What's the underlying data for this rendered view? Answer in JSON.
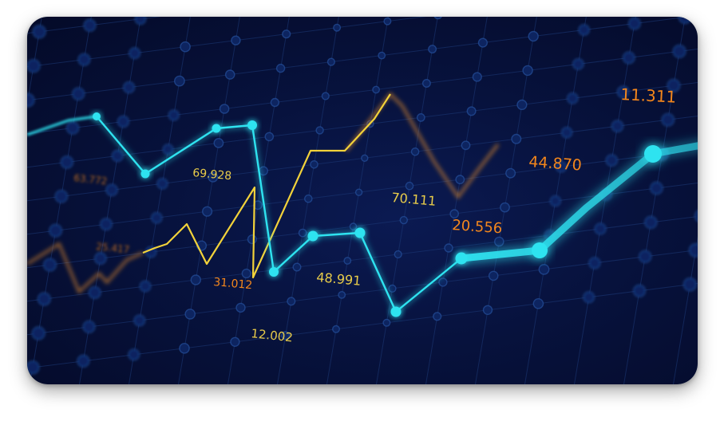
{
  "colors": {
    "background_center": "#0b1a52",
    "background_edge": "#040a28",
    "grid": "#1e3a78",
    "grid_node": "#2a58a8",
    "cyan_line": "#2fe3f0",
    "yellow_line": "#f2d23a",
    "orange_line": "#d9862a",
    "label_yellow": "#f4d64a",
    "label_orange": "#ff8c1a"
  },
  "labels": [
    {
      "id": "v63772",
      "text": "63.772",
      "tone": "orange",
      "blur": true
    },
    {
      "id": "v25417",
      "text": "25.417",
      "tone": "orange",
      "blur": true
    },
    {
      "id": "v69928",
      "text": "69.928",
      "tone": "yellow",
      "blur": false
    },
    {
      "id": "v31012",
      "text": "31.012",
      "tone": "orange",
      "blur": false
    },
    {
      "id": "v12002",
      "text": "12.002",
      "tone": "yellow",
      "blur": false
    },
    {
      "id": "v48991",
      "text": "48.991",
      "tone": "yellow",
      "blur": false
    },
    {
      "id": "v70111",
      "text": "70.111",
      "tone": "yellow",
      "blur": false
    },
    {
      "id": "v20556",
      "text": "20.556",
      "tone": "orange",
      "blur": false
    },
    {
      "id": "v44870",
      "text": "44.870",
      "tone": "orange",
      "blur": false
    },
    {
      "id": "v11311",
      "text": "11.311",
      "tone": "orange",
      "blur": false
    }
  ]
}
